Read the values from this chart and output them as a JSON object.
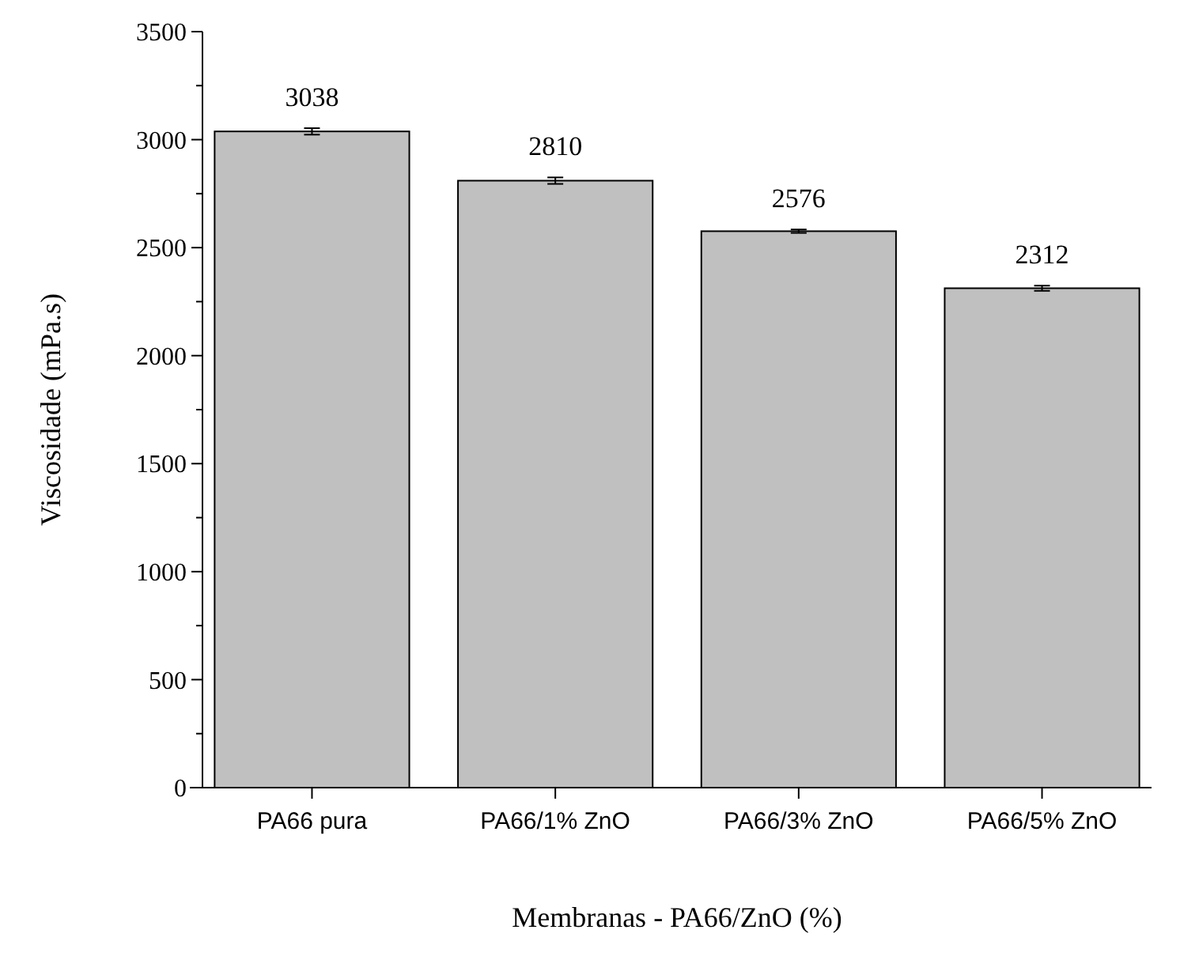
{
  "chart_data": {
    "type": "bar",
    "categories": [
      "PA66 pura",
      "PA66/1% ZnO",
      "PA66/3% ZnO",
      "PA66/5% ZnO"
    ],
    "values": [
      3038,
      2810,
      2576,
      2312
    ],
    "errors": [
      15,
      15,
      8,
      12
    ],
    "color": "#c0c0c0",
    "data_labels": true,
    "xlabel": "Membranas - PA66/ZnO (%)",
    "ylabel": "Viscosidade (mPa.s)",
    "ylim": [
      0,
      3500
    ],
    "yticks": [
      0,
      {
        "value": 250,
        "label": null
      },
      500,
      {
        "value": 750,
        "label": null
      },
      1000,
      {
        "value": 1250,
        "label": null
      },
      1500,
      {
        "value": 1750,
        "label": null
      },
      2000,
      {
        "value": 2250,
        "label": null
      },
      2500,
      {
        "value": 2750,
        "label": null
      },
      3000,
      {
        "value": 3250,
        "label": null
      },
      3500
    ],
    "grid": false
  }
}
